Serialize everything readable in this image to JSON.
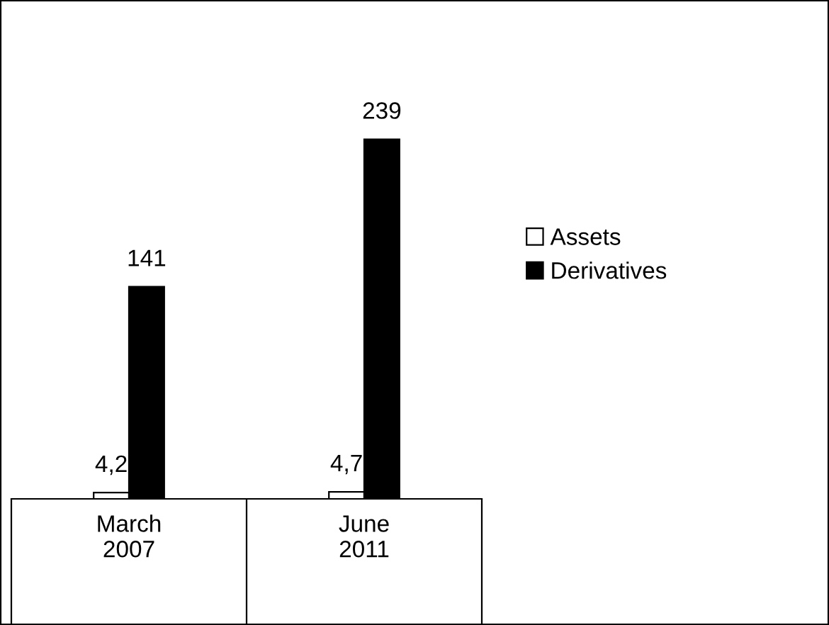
{
  "chart_data": {
    "type": "bar",
    "categories": [
      "March\n2007",
      "June\n2011"
    ],
    "series": [
      {
        "name": "Assets",
        "color": "#ffffff",
        "values": [
          4.2,
          4.7
        ],
        "value_labels": [
          "4,2",
          "4,7"
        ]
      },
      {
        "name": "Derivatives",
        "color": "#000000",
        "values": [
          141,
          239
        ],
        "value_labels": [
          "141",
          "239"
        ]
      }
    ],
    "legend": "right",
    "grid": false
  }
}
